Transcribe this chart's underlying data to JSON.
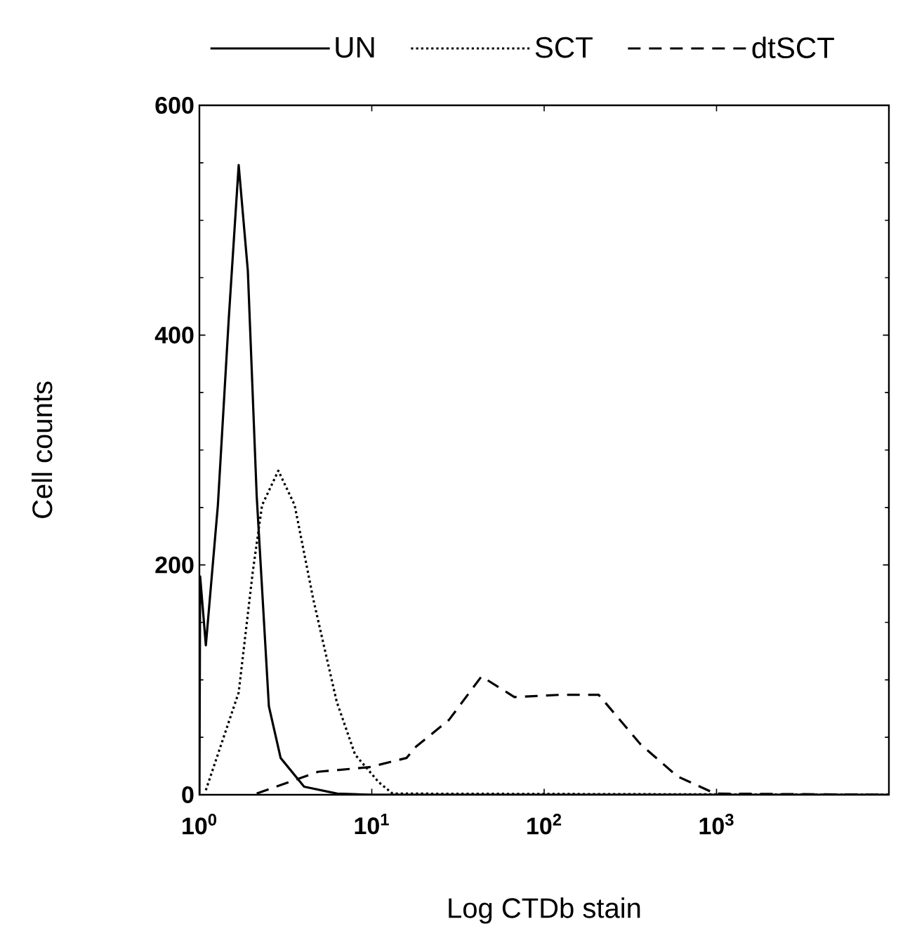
{
  "chart_data": {
    "type": "line",
    "xlabel": "Log CTDb stain",
    "ylabel": "Cell counts",
    "log": "x",
    "grid": false,
    "legend": "top",
    "marker": "none",
    "xlim": [
      1,
      10000
    ],
    "ylim": [
      0,
      600
    ],
    "xticks": [
      {
        "value": 1,
        "label": "10$^{0}$"
      },
      {
        "value": 10,
        "label": "10$^{1}$"
      },
      {
        "value": 100,
        "label": "10$^{2}$"
      },
      {
        "value": 1000,
        "label": "10$^{3}$"
      }
    ],
    "yticks": [
      0,
      200,
      400,
      600
    ],
    "series": [
      {
        "name": "UN",
        "color": "#000000",
        "line_style": "solid",
        "x": [
          1,
          1.01,
          1.09,
          1.28,
          1.48,
          1.69,
          1.91,
          2.15,
          2.53,
          2.96,
          4.05,
          6.3,
          10,
          10000
        ],
        "values": [
          0,
          190,
          130,
          252,
          414,
          548,
          456,
          260,
          77,
          32,
          7,
          1,
          0,
          0
        ]
      },
      {
        "name": "SCT",
        "color": "#000000",
        "line_style": "dotted",
        "x": [
          1.09,
          1.69,
          2.04,
          2.31,
          2.87,
          3.57,
          4.58,
          6.26,
          8.0,
          10.96,
          13.2,
          10000
        ],
        "values": [
          4,
          89,
          194,
          252,
          282,
          252,
          170,
          81,
          35,
          11,
          1,
          0
        ]
      },
      {
        "name": "dtSCT",
        "color": "#000000",
        "line_style": "dashed",
        "x": [
          2.15,
          2.78,
          4.88,
          9.7,
          15.9,
          18.1,
          28.0,
          43.3,
          67.2,
          125,
          207,
          362,
          593,
          982,
          10000
        ],
        "values": [
          1,
          7,
          20,
          24,
          32,
          42,
          65,
          103,
          85,
          87,
          87,
          44,
          16,
          1,
          0
        ]
      }
    ]
  }
}
